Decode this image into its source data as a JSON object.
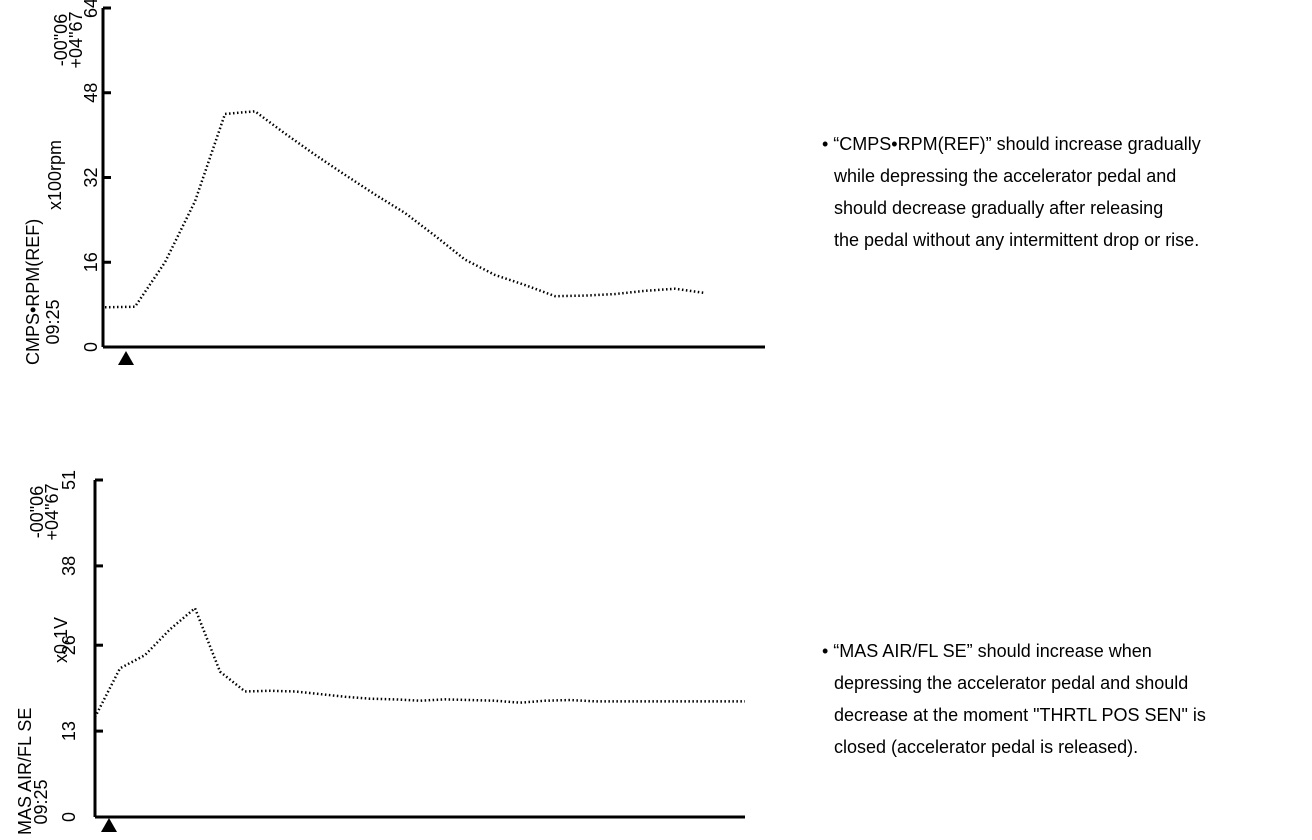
{
  "chart_data": [
    {
      "type": "line",
      "y_label": "CMPS•RPM(REF)",
      "y_unit": "x100rpm",
      "start_time": "09:25",
      "cursor_labels": [
        "-00\"06",
        "+04\"67"
      ],
      "values": [
        7.5,
        7.6,
        16,
        27.5,
        44,
        44.5,
        40.3,
        36.3,
        32.5,
        28.8,
        25.3,
        21,
        16.5,
        13.6,
        11.7,
        9.6,
        9.7,
        10,
        10.6,
        11,
        10.2
      ],
      "color": "#000000",
      "ylim": [
        0,
        64
      ],
      "yticks": [
        0,
        16,
        32,
        48,
        64
      ],
      "annotation": [
        "• “CMPS•RPM(REF)” should increase gradually",
        "while depressing the accelerator pedal and",
        "should decrease gradually after releasing",
        "the pedal without any intermittent drop or rise."
      ]
    },
    {
      "type": "line",
      "y_label": "MAS AIR/FL SE",
      "y_unit": "x0.1V",
      "start_time": "09:25",
      "cursor_labels": [
        "-00\"06",
        "+04\"67"
      ],
      "values": [
        15.1,
        22.5,
        24.5,
        28.4,
        31.6,
        22.0,
        19.0,
        19.1,
        19.0,
        18.6,
        18.2,
        17.9,
        17.8,
        17.6,
        17.8,
        17.7,
        17.6,
        17.3,
        17.6,
        17.7,
        17.5,
        17.5,
        17.5,
        17.5,
        17.5,
        17.5,
        17.5
      ],
      "color": "#000000",
      "ylim": [
        0,
        51
      ],
      "yticks": [
        0,
        13,
        26,
        38,
        51
      ],
      "annotation": [
        "• “MAS AIR/FL SE” should increase when",
        "depressing the accelerator pedal and should",
        "decrease at the moment \"THRTL POS SEN\" is",
        "closed (accelerator pedal is released)."
      ]
    }
  ]
}
